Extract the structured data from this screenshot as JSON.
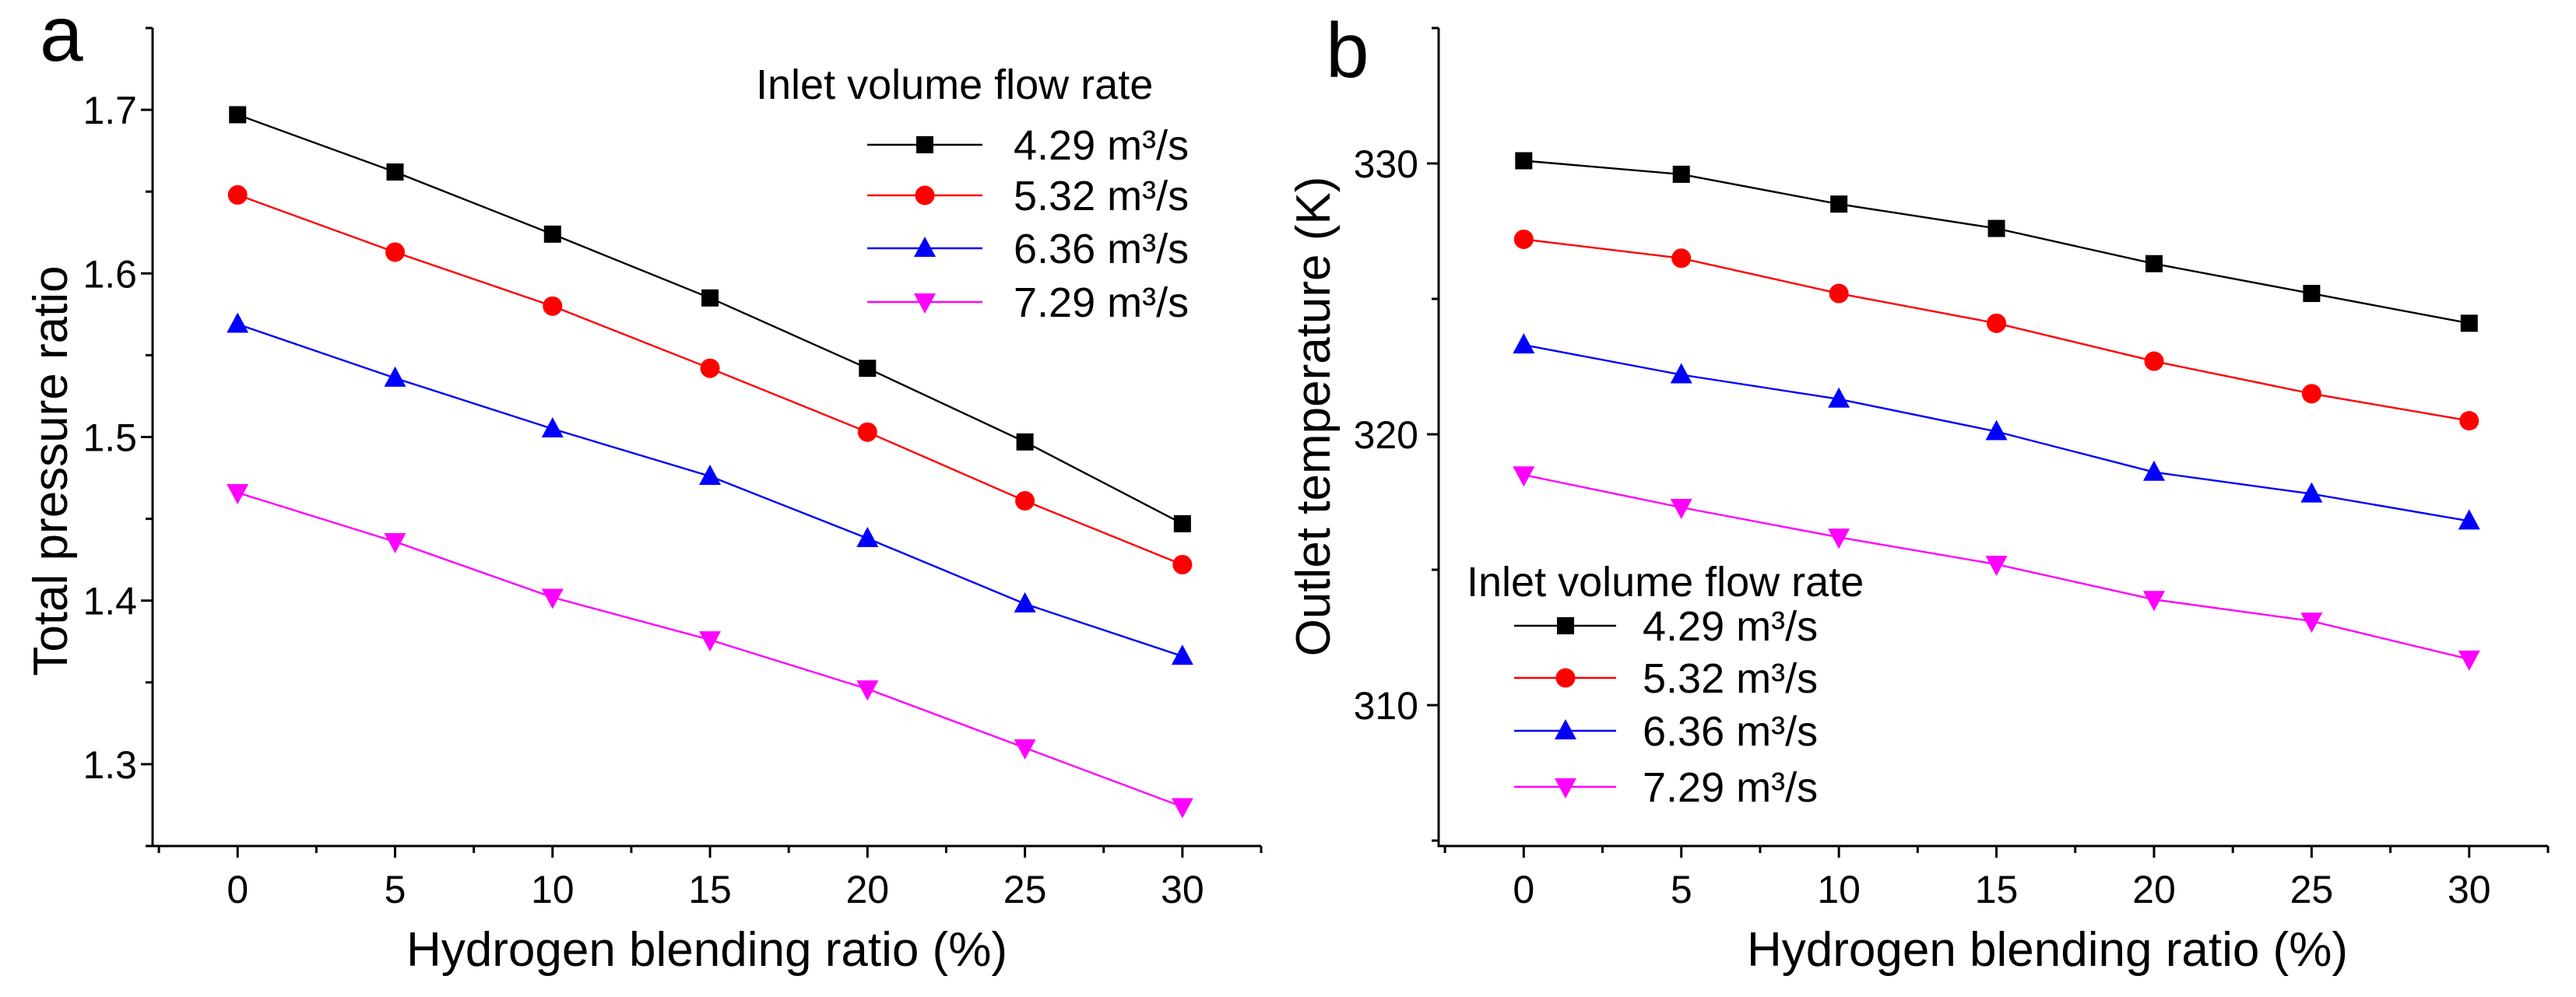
{
  "chart_data": [
    {
      "panel": "a",
      "type": "line",
      "xlabel": "Hydrogen blending ratio (%)",
      "ylabel": "Total pressure ratio",
      "x": [
        0,
        5,
        10,
        15,
        20,
        25,
        30
      ],
      "xlim": [
        -2.7,
        32.5
      ],
      "ylim": [
        1.25,
        1.75
      ],
      "xticks": [
        0,
        5,
        10,
        15,
        20,
        25,
        30
      ],
      "yticks": [
        1.3,
        1.4,
        1.5,
        1.6,
        1.7
      ],
      "grid": false,
      "legend_title": "Inlet volume flow rate",
      "legend_position": "top-right",
      "series": [
        {
          "name": "4.29 m³/s",
          "color": "#000000",
          "marker": "square",
          "values": [
            1.697,
            1.662,
            1.624,
            1.585,
            1.542,
            1.497,
            1.447
          ]
        },
        {
          "name": "5.32 m³/s",
          "color": "#ff0000",
          "marker": "circle",
          "values": [
            1.648,
            1.613,
            1.58,
            1.542,
            1.503,
            1.461,
            1.422
          ]
        },
        {
          "name": "6.36 m³/s",
          "color": "#0000ff",
          "marker": "triangle-up",
          "values": [
            1.569,
            1.536,
            1.505,
            1.476,
            1.438,
            1.398,
            1.366
          ]
        },
        {
          "name": "7.29 m³/s",
          "color": "#ff00ff",
          "marker": "triangle-down",
          "values": [
            1.466,
            1.436,
            1.402,
            1.376,
            1.346,
            1.31,
            1.274
          ]
        }
      ]
    },
    {
      "panel": "b",
      "type": "line",
      "xlabel": "Hydrogen blending ratio (%)",
      "ylabel": "Outlet temperature (K)",
      "x": [
        0,
        5,
        10,
        15,
        20,
        25,
        30
      ],
      "xlim": [
        -2.7,
        32.5
      ],
      "ylim": [
        304.8,
        335
      ],
      "xticks": [
        0,
        5,
        10,
        15,
        20,
        25,
        30
      ],
      "yticks": [
        310,
        320,
        330
      ],
      "grid": false,
      "legend_title": "Inlet volume flow rate",
      "legend_position": "bottom-left",
      "series": [
        {
          "name": "4.29 m³/s",
          "color": "#000000",
          "marker": "square",
          "values": [
            330.1,
            329.6,
            328.5,
            327.6,
            326.3,
            325.2,
            324.1
          ]
        },
        {
          "name": "5.32 m³/s",
          "color": "#ff0000",
          "marker": "circle",
          "values": [
            327.2,
            326.5,
            325.2,
            324.1,
            322.7,
            321.5,
            320.5
          ]
        },
        {
          "name": "6.36 m³/s",
          "color": "#0000ff",
          "marker": "triangle-up",
          "values": [
            323.3,
            322.2,
            321.3,
            320.1,
            318.6,
            317.8,
            316.8
          ]
        },
        {
          "name": "7.29 m³/s",
          "color": "#ff00ff",
          "marker": "triangle-down",
          "values": [
            318.5,
            317.3,
            316.2,
            315.2,
            313.9,
            313.1,
            311.7
          ]
        }
      ]
    }
  ]
}
